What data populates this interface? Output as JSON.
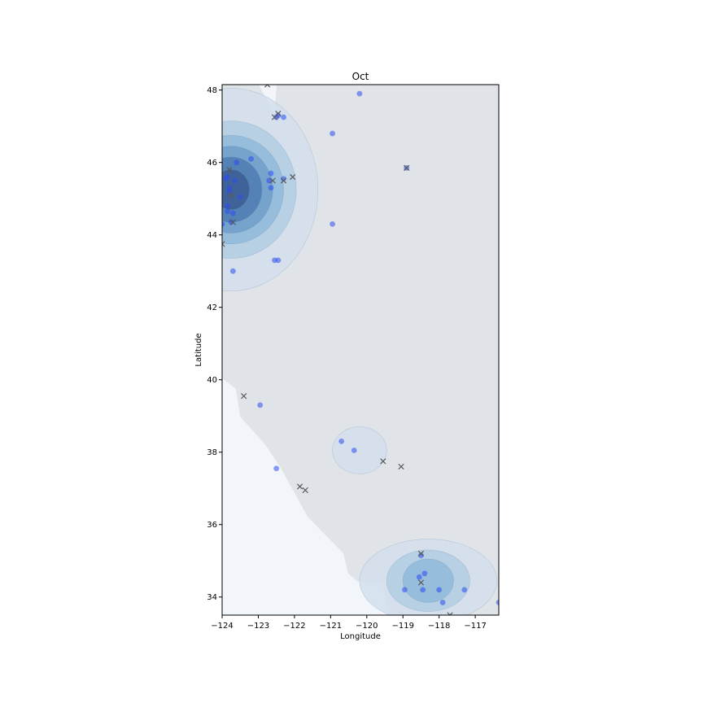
{
  "chart_data": {
    "type": "scatter",
    "title": "Oct",
    "xlabel": "Longitude",
    "ylabel": "Latitude",
    "xlim": [
      -124.0,
      -116.35
    ],
    "ylim": [
      33.5,
      48.15
    ],
    "xticks": [
      -124,
      -123,
      -122,
      -121,
      -120,
      -119,
      -118,
      -117
    ],
    "yticks": [
      34,
      36,
      38,
      40,
      42,
      44,
      46,
      48
    ],
    "grid": false,
    "legend": "none",
    "colors": {
      "background_land": "#e0e4e8",
      "ocean": "#f2f6fa",
      "points": "#2b4cf0",
      "cross": "#5a5a5a",
      "density_ramp": [
        "#d2dfec",
        "#b2cde3",
        "#92bada",
        "#6f9fc9",
        "#4f7db3",
        "#3c5d94"
      ]
    },
    "density_contours": [
      {
        "center": [
          -123.75,
          45.25
        ],
        "levels": [
          {
            "rx": 2.4,
            "ry": 2.8
          },
          {
            "rx": 1.8,
            "ry": 1.9
          },
          {
            "rx": 1.45,
            "ry": 1.5
          },
          {
            "rx": 1.15,
            "ry": 1.2
          },
          {
            "rx": 0.85,
            "ry": 0.9
          },
          {
            "rx": 0.5,
            "ry": 0.55
          }
        ]
      },
      {
        "center": [
          -120.2,
          38.05
        ],
        "levels": [
          {
            "rx": 0.75,
            "ry": 0.65
          }
        ]
      },
      {
        "center": [
          -118.3,
          34.45
        ],
        "levels": [
          {
            "rx": 1.9,
            "ry": 1.15
          },
          {
            "rx": 1.15,
            "ry": 0.85
          },
          {
            "rx": 0.7,
            "ry": 0.6
          }
        ]
      }
    ],
    "series": [
      {
        "marker": "circle",
        "points": [
          [
            -120.2,
            47.9
          ],
          [
            -122.5,
            47.25
          ],
          [
            -122.3,
            47.25
          ],
          [
            -122.45,
            47.3
          ],
          [
            -120.95,
            46.8
          ],
          [
            -123.2,
            46.1
          ],
          [
            -123.6,
            46.0
          ],
          [
            -123.9,
            45.55
          ],
          [
            -123.85,
            45.6
          ],
          [
            -123.65,
            45.5
          ],
          [
            -122.65,
            45.7
          ],
          [
            -122.7,
            45.5
          ],
          [
            -122.65,
            45.3
          ],
          [
            -123.8,
            45.3
          ],
          [
            -123.8,
            45.2
          ],
          [
            -123.5,
            45.05
          ],
          [
            -123.85,
            44.8
          ],
          [
            -123.85,
            44.65
          ],
          [
            -123.7,
            44.6
          ],
          [
            -123.75,
            44.35
          ],
          [
            -124.0,
            44.3
          ],
          [
            -120.95,
            44.3
          ],
          [
            -122.55,
            43.3
          ],
          [
            -122.45,
            43.3
          ],
          [
            -123.7,
            43.0
          ],
          [
            -122.95,
            39.3
          ],
          [
            -120.7,
            38.3
          ],
          [
            -120.35,
            38.05
          ],
          [
            -122.5,
            37.55
          ],
          [
            -118.5,
            35.15
          ],
          [
            -118.4,
            34.65
          ],
          [
            -118.55,
            34.55
          ],
          [
            -118.45,
            34.2
          ],
          [
            -118.95,
            34.2
          ],
          [
            -118.0,
            34.2
          ],
          [
            -117.3,
            34.2
          ],
          [
            -117.9,
            33.85
          ],
          [
            -116.35,
            33.85
          ],
          [
            -118.9,
            45.85
          ],
          [
            -122.3,
            45.55
          ]
        ]
      },
      {
        "marker": "x",
        "points": [
          [
            -122.75,
            48.15
          ],
          [
            -122.45,
            47.35
          ],
          [
            -122.55,
            47.25
          ],
          [
            -123.8,
            45.8
          ],
          [
            -122.6,
            45.5
          ],
          [
            -122.05,
            45.6
          ],
          [
            -122.3,
            45.5
          ],
          [
            -123.75,
            45.1
          ],
          [
            -123.7,
            44.35
          ],
          [
            -124.0,
            43.75
          ],
          [
            -123.4,
            39.55
          ],
          [
            -119.55,
            37.75
          ],
          [
            -119.05,
            37.6
          ],
          [
            -121.85,
            37.05
          ],
          [
            -121.7,
            36.95
          ],
          [
            -118.5,
            35.2
          ],
          [
            -118.5,
            34.4
          ],
          [
            -117.7,
            33.5
          ],
          [
            -118.9,
            45.85
          ]
        ]
      }
    ]
  }
}
